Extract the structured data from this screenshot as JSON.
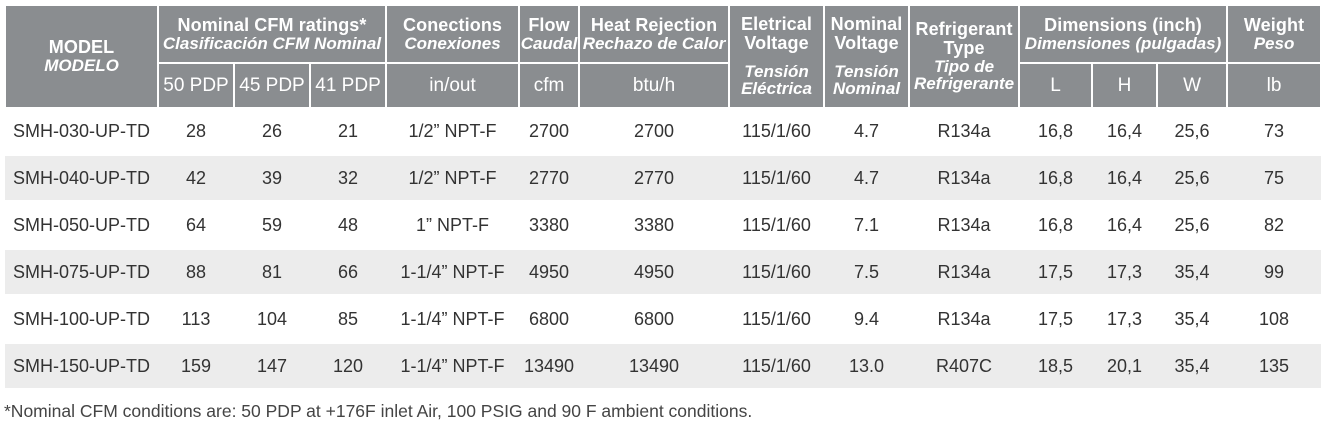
{
  "header": {
    "model_en": "MODEL",
    "model_es": "MODELO",
    "cfm_en": "Nominal CFM ratings*",
    "cfm_es": "Clasificación CFM Nominal",
    "cfm_sub": [
      "50 PDP",
      "45 PDP",
      "41 PDP"
    ],
    "conn_en": "Conections",
    "conn_es": "Conexiones",
    "conn_unit": "in/out",
    "flow_en": "Flow",
    "flow_es": "Caudal",
    "flow_unit": "cfm",
    "heat_en": "Heat Rejection",
    "heat_es": "Rechazo de Calor",
    "heat_unit": "btu/h",
    "elec_en": "Eletrical Voltage",
    "elec_es": "Tensión Eléctrica",
    "nom_en": "Nominal Voltage",
    "nom_es": "Tensión Nominal",
    "ref_en": "Refrigerant Type",
    "ref_es": "Tipo de Refrigerante",
    "dim_en": "Dimensions (inch)",
    "dim_es": "Dimensiones (pulgadas)",
    "dim_sub": [
      "L",
      "H",
      "W"
    ],
    "weight_en": "Weight",
    "weight_es": "Peso",
    "weight_unit": "lb"
  },
  "rows": [
    {
      "model": "SMH-030-UP-TD",
      "pdp50": "28",
      "pdp45": "26",
      "pdp41": "21",
      "conn": "1/2” NPT-F",
      "flow": "2700",
      "heat": "2700",
      "elec": "115/1/60",
      "nom": "4.7",
      "ref": "R134a",
      "L": "16,8",
      "H": "16,4",
      "W": "25,6",
      "weight": "73"
    },
    {
      "model": "SMH-040-UP-TD",
      "pdp50": "42",
      "pdp45": "39",
      "pdp41": "32",
      "conn": "1/2” NPT-F",
      "flow": "2770",
      "heat": "2770",
      "elec": "115/1/60",
      "nom": "4.7",
      "ref": "R134a",
      "L": "16,8",
      "H": "16,4",
      "W": "25,6",
      "weight": "75"
    },
    {
      "model": "SMH-050-UP-TD",
      "pdp50": "64",
      "pdp45": "59",
      "pdp41": "48",
      "conn": "1” NPT-F",
      "flow": "3380",
      "heat": "3380",
      "elec": "115/1/60",
      "nom": "7.1",
      "ref": "R134a",
      "L": "16,8",
      "H": "16,4",
      "W": "25,6",
      "weight": "82"
    },
    {
      "model": "SMH-075-UP-TD",
      "pdp50": "88",
      "pdp45": "81",
      "pdp41": "66",
      "conn": "1-1/4” NPT-F",
      "flow": "4950",
      "heat": "4950",
      "elec": "115/1/60",
      "nom": "7.5",
      "ref": "R134a",
      "L": "17,5",
      "H": "17,3",
      "W": "35,4",
      "weight": "99"
    },
    {
      "model": "SMH-100-UP-TD",
      "pdp50": "113",
      "pdp45": "104",
      "pdp41": "85",
      "conn": "1-1/4” NPT-F",
      "flow": "6800",
      "heat": "6800",
      "elec": "115/1/60",
      "nom": "9.4",
      "ref": "R134a",
      "L": "17,5",
      "H": "17,3",
      "W": "35,4",
      "weight": "108"
    },
    {
      "model": "SMH-150-UP-TD",
      "pdp50": "159",
      "pdp45": "147",
      "pdp41": "120",
      "conn": "1-1/4” NPT-F",
      "flow": "13490",
      "heat": "13490",
      "elec": "115/1/60",
      "nom": "13.0",
      "ref": "R407C",
      "L": "18,5",
      "H": "20,1",
      "W": "35,4",
      "weight": "135"
    }
  ],
  "footnote": "*Nominal CFM conditions are: 50 PDP at +176F inlet Air, 100 PSIG and 90 F ambient conditions."
}
